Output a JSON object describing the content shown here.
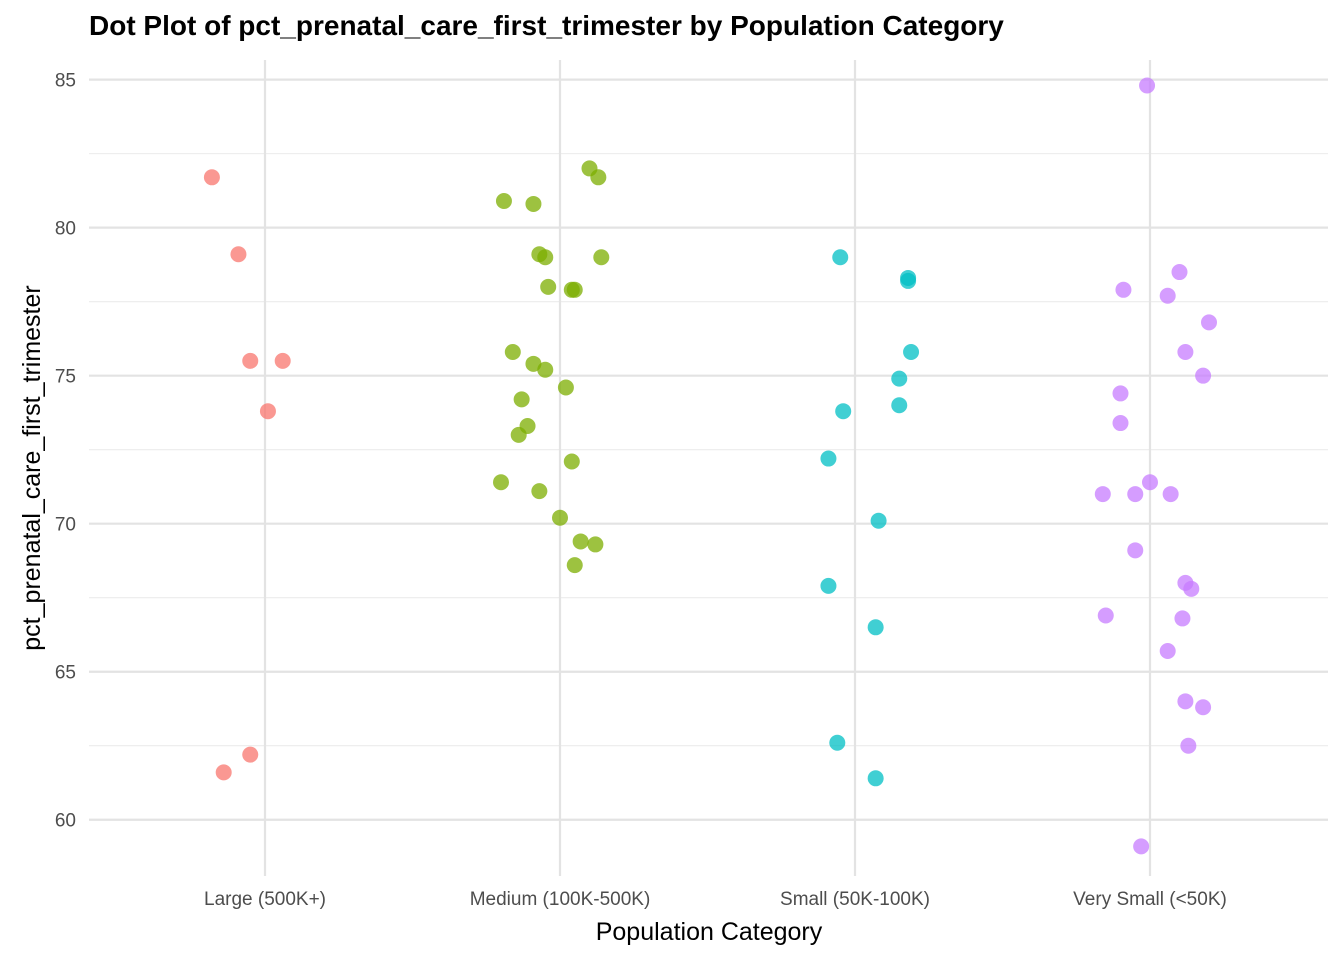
{
  "chart_data": {
    "type": "scatter",
    "title": "Dot Plot of pct_prenatal_care_first_trimester by Population Category",
    "xlabel": "Population Category",
    "ylabel": "pct_prenatal_care_first_trimester",
    "categories": [
      "Large (500K+)",
      "Medium (100K-500K)",
      "Small (50K-100K)",
      "Very Small (<50K)"
    ],
    "ylim": [
      58.1,
      86.0
    ],
    "yticks": [
      60,
      65,
      70,
      75,
      80,
      85
    ],
    "grid": true,
    "legend": "none",
    "colors": [
      "#F8766D",
      "#7CAE00",
      "#00BFC4",
      "#C77CFF"
    ],
    "series": [
      {
        "category": "Large (500K+)",
        "points": [
          {
            "jitter": -0.18,
            "y": 81.7
          },
          {
            "jitter": -0.09,
            "y": 79.1
          },
          {
            "jitter": -0.05,
            "y": 75.5
          },
          {
            "jitter": 0.06,
            "y": 75.5
          },
          {
            "jitter": 0.01,
            "y": 73.8
          },
          {
            "jitter": -0.05,
            "y": 62.2
          },
          {
            "jitter": -0.14,
            "y": 61.6
          }
        ]
      },
      {
        "category": "Medium (100K-500K)",
        "points": [
          {
            "jitter": 0.1,
            "y": 82.0
          },
          {
            "jitter": 0.13,
            "y": 81.7
          },
          {
            "jitter": -0.19,
            "y": 80.9
          },
          {
            "jitter": -0.09,
            "y": 80.8
          },
          {
            "jitter": -0.07,
            "y": 79.1
          },
          {
            "jitter": -0.05,
            "y": 79.0
          },
          {
            "jitter": 0.14,
            "y": 79.0
          },
          {
            "jitter": -0.04,
            "y": 78.0
          },
          {
            "jitter": 0.04,
            "y": 77.9
          },
          {
            "jitter": 0.05,
            "y": 77.9
          },
          {
            "jitter": -0.16,
            "y": 75.8
          },
          {
            "jitter": -0.09,
            "y": 75.4
          },
          {
            "jitter": -0.05,
            "y": 75.2
          },
          {
            "jitter": 0.02,
            "y": 74.6
          },
          {
            "jitter": -0.13,
            "y": 74.2
          },
          {
            "jitter": -0.11,
            "y": 73.3
          },
          {
            "jitter": -0.14,
            "y": 73.0
          },
          {
            "jitter": 0.04,
            "y": 72.1
          },
          {
            "jitter": -0.2,
            "y": 71.4
          },
          {
            "jitter": -0.07,
            "y": 71.1
          },
          {
            "jitter": 0.0,
            "y": 70.2
          },
          {
            "jitter": 0.07,
            "y": 69.4
          },
          {
            "jitter": 0.12,
            "y": 69.3
          },
          {
            "jitter": 0.05,
            "y": 68.6
          }
        ]
      },
      {
        "category": "Small (50K-100K)",
        "points": [
          {
            "jitter": -0.05,
            "y": 79.0
          },
          {
            "jitter": 0.18,
            "y": 78.3
          },
          {
            "jitter": 0.18,
            "y": 78.2
          },
          {
            "jitter": 0.19,
            "y": 75.8
          },
          {
            "jitter": 0.15,
            "y": 74.9
          },
          {
            "jitter": 0.15,
            "y": 74.0
          },
          {
            "jitter": -0.04,
            "y": 73.8
          },
          {
            "jitter": -0.09,
            "y": 72.2
          },
          {
            "jitter": 0.08,
            "y": 70.1
          },
          {
            "jitter": -0.09,
            "y": 67.9
          },
          {
            "jitter": 0.07,
            "y": 66.5
          },
          {
            "jitter": -0.06,
            "y": 62.6
          },
          {
            "jitter": 0.07,
            "y": 61.4
          }
        ]
      },
      {
        "category": "Very Small (<50K)",
        "points": [
          {
            "jitter": -0.01,
            "y": 84.8
          },
          {
            "jitter": 0.1,
            "y": 78.5
          },
          {
            "jitter": -0.09,
            "y": 77.9
          },
          {
            "jitter": 0.06,
            "y": 77.7
          },
          {
            "jitter": 0.2,
            "y": 76.8
          },
          {
            "jitter": 0.12,
            "y": 75.8
          },
          {
            "jitter": 0.18,
            "y": 75.0
          },
          {
            "jitter": -0.1,
            "y": 74.4
          },
          {
            "jitter": -0.1,
            "y": 73.4
          },
          {
            "jitter": 0.0,
            "y": 71.4
          },
          {
            "jitter": -0.16,
            "y": 71.0
          },
          {
            "jitter": -0.05,
            "y": 71.0
          },
          {
            "jitter": 0.07,
            "y": 71.0
          },
          {
            "jitter": -0.05,
            "y": 69.1
          },
          {
            "jitter": 0.12,
            "y": 68.0
          },
          {
            "jitter": 0.14,
            "y": 67.8
          },
          {
            "jitter": -0.15,
            "y": 66.9
          },
          {
            "jitter": 0.11,
            "y": 66.8
          },
          {
            "jitter": 0.06,
            "y": 65.7
          },
          {
            "jitter": 0.12,
            "y": 64.0
          },
          {
            "jitter": 0.18,
            "y": 63.8
          },
          {
            "jitter": 0.13,
            "y": 62.5
          },
          {
            "jitter": -0.03,
            "y": 59.1
          }
        ]
      }
    ]
  }
}
